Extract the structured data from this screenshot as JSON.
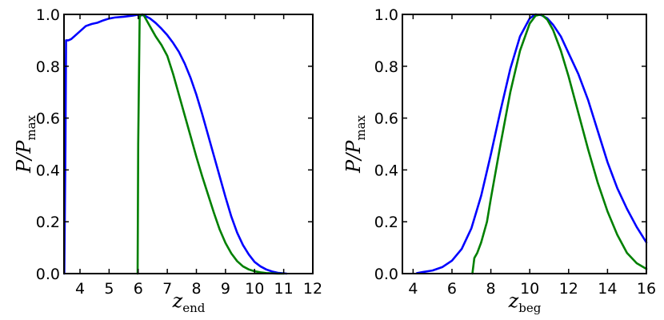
{
  "chart_data": [
    {
      "type": "line",
      "xlabel": "z",
      "xlabel_sub": "end",
      "ylabel": "P/P",
      "ylabel_sub": "max",
      "xlim": [
        3.45,
        12
      ],
      "ylim": [
        0,
        1
      ],
      "xticks": [
        4,
        5,
        6,
        7,
        8,
        9,
        10,
        11,
        12
      ],
      "yticks": [
        0.0,
        0.2,
        0.4,
        0.6,
        0.8,
        1.0
      ],
      "grid": false,
      "series": [
        {
          "color": "#0000ff",
          "x": [
            3.46,
            3.5,
            3.52,
            3.6,
            3.7,
            3.8,
            3.9,
            4.0,
            4.2,
            4.4,
            4.6,
            4.8,
            5.0,
            5.2,
            5.5,
            5.8,
            6.0,
            6.2,
            6.4,
            6.6,
            6.8,
            7.0,
            7.2,
            7.4,
            7.6,
            7.8,
            8.0,
            8.2,
            8.4,
            8.6,
            8.8,
            9.0,
            9.2,
            9.4,
            9.6,
            9.8,
            10.0,
            10.2,
            10.4,
            10.6,
            10.8,
            11.0,
            11.1
          ],
          "y": [
            0.0,
            0.5,
            0.9,
            0.9,
            0.905,
            0.915,
            0.925,
            0.935,
            0.955,
            0.963,
            0.968,
            0.977,
            0.984,
            0.988,
            0.991,
            0.995,
            0.999,
            0.996,
            0.985,
            0.967,
            0.945,
            0.92,
            0.89,
            0.855,
            0.81,
            0.755,
            0.69,
            0.615,
            0.535,
            0.455,
            0.375,
            0.295,
            0.22,
            0.158,
            0.11,
            0.074,
            0.045,
            0.028,
            0.016,
            0.008,
            0.003,
            0.001,
            0.0
          ]
        },
        {
          "color": "#008000",
          "x": [
            5.98,
            6.0,
            6.05,
            6.1,
            6.15,
            6.2,
            6.3,
            6.4,
            6.5,
            6.6,
            6.8,
            7.0,
            7.2,
            7.4,
            7.6,
            7.8,
            8.0,
            8.2,
            8.4,
            8.6,
            8.8,
            9.0,
            9.2,
            9.4,
            9.6,
            9.8,
            10.0,
            10.2,
            10.4,
            10.6,
            10.8,
            11.0
          ],
          "y": [
            0.0,
            0.5,
            0.99,
            0.999,
            1.0,
            0.995,
            0.975,
            0.955,
            0.935,
            0.915,
            0.882,
            0.84,
            0.77,
            0.69,
            0.61,
            0.53,
            0.45,
            0.375,
            0.305,
            0.235,
            0.17,
            0.118,
            0.078,
            0.048,
            0.028,
            0.016,
            0.009,
            0.005,
            0.002,
            0.001,
            0.0,
            0.0
          ]
        }
      ]
    },
    {
      "type": "line",
      "xlabel": "z",
      "xlabel_sub": "beg",
      "ylabel": "P/P",
      "ylabel_sub": "max",
      "xlim": [
        3.45,
        16
      ],
      "ylim": [
        0,
        1
      ],
      "xticks": [
        4,
        6,
        8,
        10,
        12,
        14,
        16
      ],
      "yticks": [
        0.0,
        0.2,
        0.4,
        0.6,
        0.8,
        1.0
      ],
      "grid": false,
      "series": [
        {
          "color": "#0000ff",
          "x": [
            4.2,
            4.5,
            5.0,
            5.5,
            6.0,
            6.5,
            7.0,
            7.5,
            8.0,
            8.5,
            9.0,
            9.5,
            10.0,
            10.3,
            10.6,
            10.9,
            11.2,
            11.6,
            12.0,
            12.5,
            13.0,
            13.5,
            14.0,
            14.5,
            15.0,
            15.5,
            16.0
          ],
          "y": [
            0.002,
            0.006,
            0.012,
            0.025,
            0.05,
            0.095,
            0.175,
            0.3,
            0.46,
            0.63,
            0.79,
            0.915,
            0.985,
            1.0,
            0.997,
            0.985,
            0.96,
            0.915,
            0.85,
            0.77,
            0.67,
            0.55,
            0.43,
            0.33,
            0.25,
            0.18,
            0.12
          ]
        },
        {
          "color": "#008000",
          "x": [
            7.05,
            7.15,
            7.3,
            7.5,
            7.8,
            8.0,
            8.5,
            9.0,
            9.5,
            10.0,
            10.3,
            10.6,
            10.9,
            11.2,
            11.6,
            12.0,
            12.5,
            13.0,
            13.5,
            14.0,
            14.5,
            15.0,
            15.5,
            16.0
          ],
          "y": [
            0.0,
            0.06,
            0.08,
            0.12,
            0.2,
            0.29,
            0.5,
            0.7,
            0.86,
            0.965,
            0.995,
            1.0,
            0.98,
            0.94,
            0.86,
            0.76,
            0.62,
            0.48,
            0.35,
            0.24,
            0.15,
            0.08,
            0.04,
            0.018
          ]
        }
      ]
    }
  ]
}
